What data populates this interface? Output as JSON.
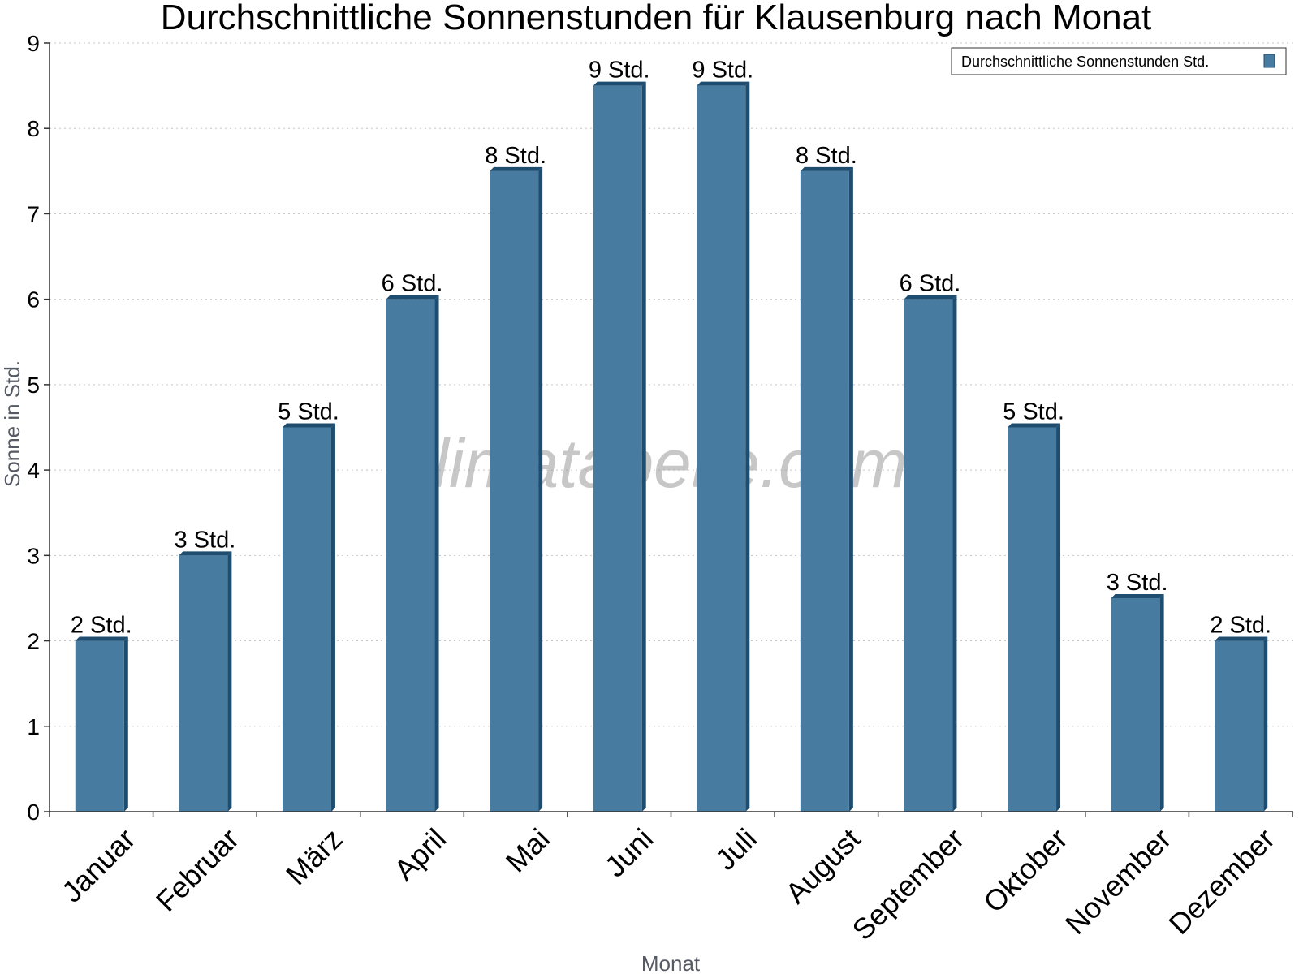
{
  "chart_data": {
    "type": "bar",
    "title": "Durchschnittliche Sonnenstunden für Klausenburg nach Monat",
    "xlabel": "Monat",
    "ylabel": "Sonne in Std.",
    "ylim": [
      0,
      9
    ],
    "yticks": [
      0,
      1,
      2,
      3,
      4,
      5,
      6,
      7,
      8,
      9
    ],
    "grid": true,
    "legend_position": "top-right",
    "categories": [
      "Januar",
      "Februar",
      "März",
      "April",
      "Mai",
      "Juni",
      "Juli",
      "August",
      "September",
      "Oktober",
      "November",
      "Dezember"
    ],
    "series": [
      {
        "name": "Durchschnittliche Sonnenstunden Std.",
        "color": "#477ca0",
        "side_color": "#1f4d70",
        "values": [
          2,
          3,
          4.5,
          6,
          7.5,
          8.5,
          8.5,
          7.5,
          6,
          4.5,
          2.5,
          2
        ],
        "labels": [
          "2 Std.",
          "3 Std.",
          "5 Std.",
          "6 Std.",
          "8 Std.",
          "9 Std.",
          "9 Std.",
          "8 Std.",
          "6 Std.",
          "5 Std.",
          "3 Std.",
          "2 Std."
        ]
      }
    ]
  },
  "watermark": "klimatabelle.com"
}
